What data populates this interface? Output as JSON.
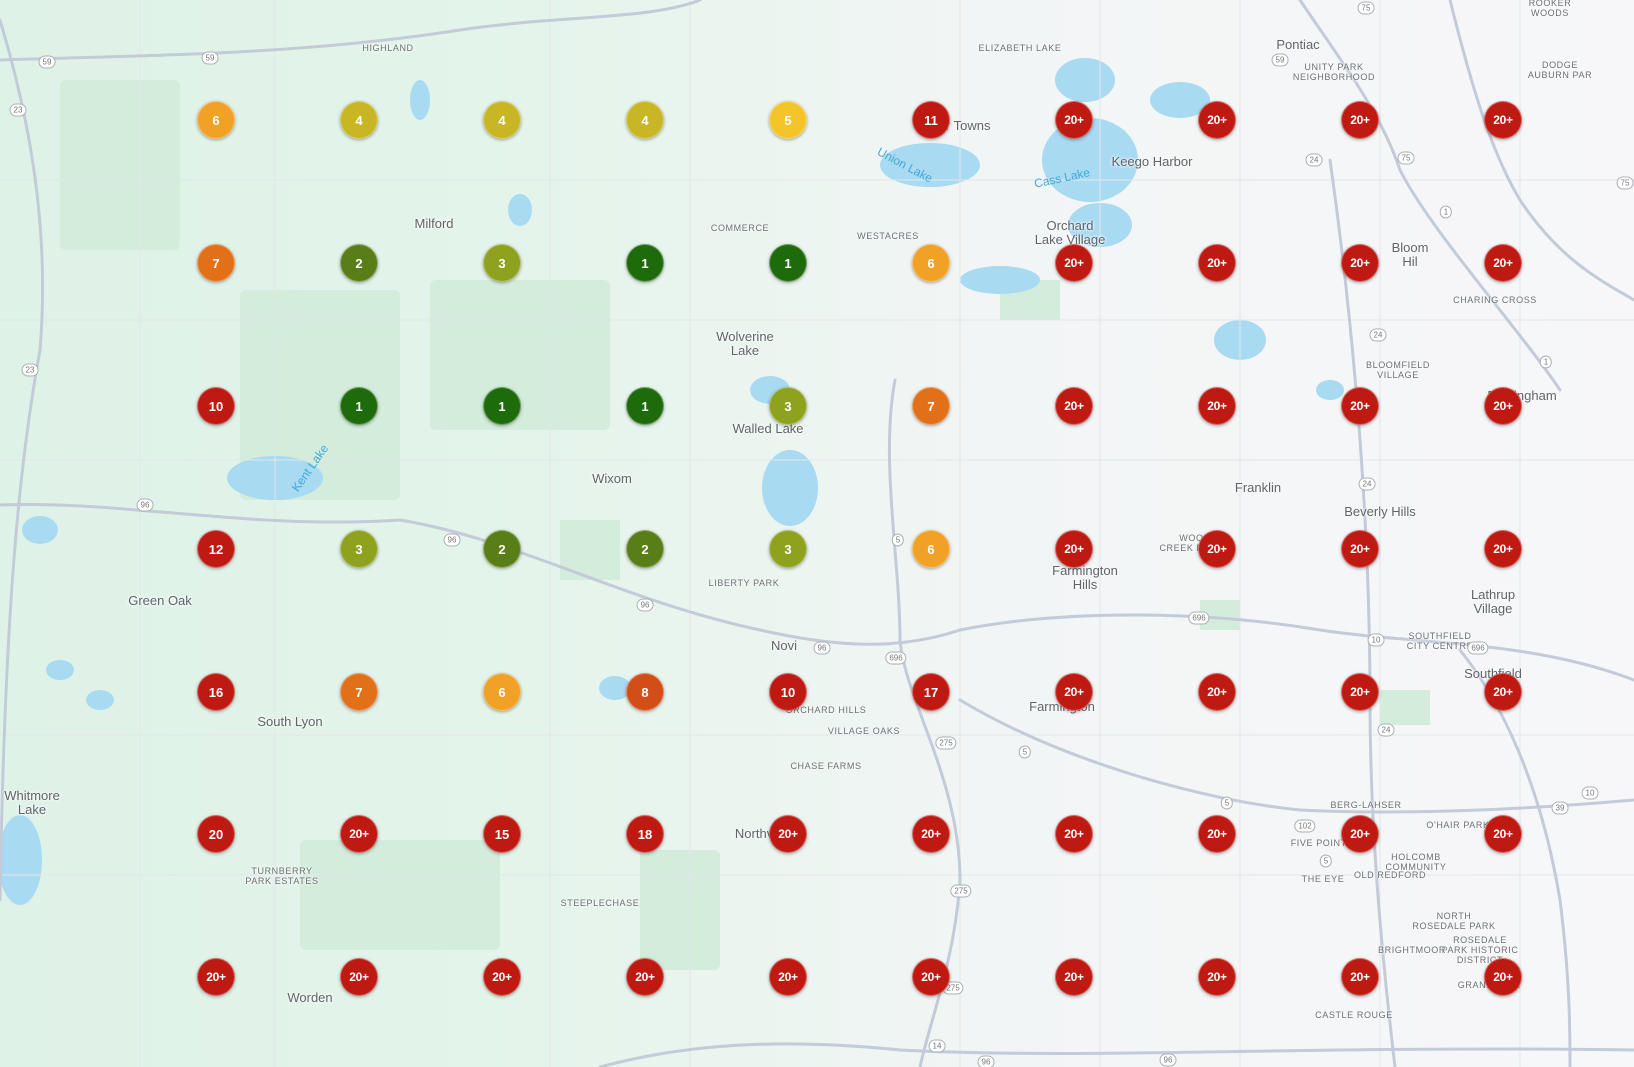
{
  "map": {
    "colors": {
      "rank_1": "#1e6b0c",
      "rank_2": "#5a7e17",
      "rank_3": "#8ea21e",
      "rank_4": "#c9b624",
      "rank_5": "#f4c52b",
      "rank_6": "#f0a126",
      "rank_7": "#e17018",
      "rank_8": "#d34d17",
      "rank_high": "#be1a12"
    },
    "grid": {
      "rows": [
        [
          "6",
          "4",
          "4",
          "4",
          "5",
          "11",
          "20+",
          "20+",
          "20+",
          "20+"
        ],
        [
          "7",
          "2",
          "3",
          "1",
          "1",
          "6",
          "20+",
          "20+",
          "20+",
          "20+"
        ],
        [
          "10",
          "1",
          "1",
          "1",
          "3",
          "7",
          "20+",
          "20+",
          "20+",
          "20+"
        ],
        [
          "12",
          "3",
          "2",
          "2",
          "3",
          "6",
          "20+",
          "20+",
          "20+",
          "20+"
        ],
        [
          "16",
          "7",
          "6",
          "8",
          "10",
          "17",
          "20+",
          "20+",
          "20+",
          "20+"
        ],
        [
          "20",
          "20+",
          "15",
          "18",
          "20+",
          "20+",
          "20+",
          "20+",
          "20+",
          "20+"
        ],
        [
          "20+",
          "20+",
          "20+",
          "20+",
          "20+",
          "20+",
          "20+",
          "20+",
          "20+",
          "20+"
        ]
      ]
    },
    "places": [
      {
        "name": "HIGHLAND",
        "size": "small"
      },
      {
        "name": "ELIZABETH LAKE",
        "size": "small"
      },
      {
        "name": "Pontiac",
        "size": "normal"
      },
      {
        "name": "UNITY PARK\nNEIGHBORHOOD",
        "size": "small"
      },
      {
        "name": "DODGE\nAUBURN PAR",
        "size": "small"
      },
      {
        "name": "ROOKER\nWOODS",
        "size": "small"
      },
      {
        "name": "Four Towns",
        "size": "normal"
      },
      {
        "name": "Keego Harbor",
        "size": "normal"
      },
      {
        "name": "Union Lake",
        "size": "water"
      },
      {
        "name": "Cass Lake",
        "size": "water"
      },
      {
        "name": "Milford",
        "size": "normal"
      },
      {
        "name": "COMMERCE",
        "size": "small"
      },
      {
        "name": "WESTACRES",
        "size": "small"
      },
      {
        "name": "Orchard\nLake Village",
        "size": "normal"
      },
      {
        "name": "Bloom\nHil",
        "size": "normal"
      },
      {
        "name": "CHARING CROSS",
        "size": "small"
      },
      {
        "name": "Wolverine\nLake",
        "size": "normal"
      },
      {
        "name": "BLOOMFIELD\nVILLAGE",
        "size": "small"
      },
      {
        "name": "Birmingham",
        "size": "normal"
      },
      {
        "name": "Walled Lake",
        "size": "normal"
      },
      {
        "name": "Kent Lake",
        "size": "water"
      },
      {
        "name": "Wixom",
        "size": "normal"
      },
      {
        "name": "Franklin",
        "size": "normal"
      },
      {
        "name": "Beverly Hills",
        "size": "normal"
      },
      {
        "name": "WOOD\nCREEK FARMS",
        "size": "small"
      },
      {
        "name": "Green Oak",
        "size": "normal"
      },
      {
        "name": "LIBERTY PARK",
        "size": "small"
      },
      {
        "name": "Farmington\nHills",
        "size": "normal"
      },
      {
        "name": "Lathrup\nVillage",
        "size": "normal"
      },
      {
        "name": "Novi",
        "size": "normal"
      },
      {
        "name": "SOUTHFIELD\nCITY CENTRE",
        "size": "small"
      },
      {
        "name": "Southfield",
        "size": "normal"
      },
      {
        "name": "South Lyon",
        "size": "normal"
      },
      {
        "name": "ORCHARD HILLS",
        "size": "small"
      },
      {
        "name": "VILLAGE OAKS",
        "size": "small"
      },
      {
        "name": "Farmington",
        "size": "normal"
      },
      {
        "name": "CHASE FARMS",
        "size": "small"
      },
      {
        "name": "Whitmore\nLake",
        "size": "normal"
      },
      {
        "name": "BERG-LAHSER",
        "size": "small"
      },
      {
        "name": "O'HAIR PARK",
        "size": "small"
      },
      {
        "name": "Northville",
        "size": "normal"
      },
      {
        "name": "FIVE POINTS",
        "size": "small"
      },
      {
        "name": "HOLCOMB\nCOMMUNITY",
        "size": "small"
      },
      {
        "name": "THE EYE",
        "size": "small"
      },
      {
        "name": "OLD REDFORD",
        "size": "small"
      },
      {
        "name": "TURNBERRY\nPARK ESTATES",
        "size": "small"
      },
      {
        "name": "STEEPLECHASE",
        "size": "small"
      },
      {
        "name": "NORTH\nROSEDALE PARK",
        "size": "small"
      },
      {
        "name": "ROSEDALE\nPARK HISTORIC\nDISTRICT",
        "size": "small"
      },
      {
        "name": "BRIGHTMOOR",
        "size": "small"
      },
      {
        "name": "GRANDMONT",
        "size": "small"
      },
      {
        "name": "Worden",
        "size": "normal"
      },
      {
        "name": "CASTLE ROUGE",
        "size": "small"
      }
    ],
    "route_shields": [
      "59",
      "59",
      "59",
      "23",
      "23",
      "75",
      "75",
      "75",
      "24",
      "24",
      "24",
      "24",
      "1",
      "1",
      "96",
      "96",
      "96",
      "96",
      "5",
      "5",
      "5",
      "5",
      "696",
      "696",
      "696",
      "275",
      "275",
      "275",
      "10",
      "10",
      "39",
      "102",
      "14",
      "96",
      "96"
    ]
  }
}
